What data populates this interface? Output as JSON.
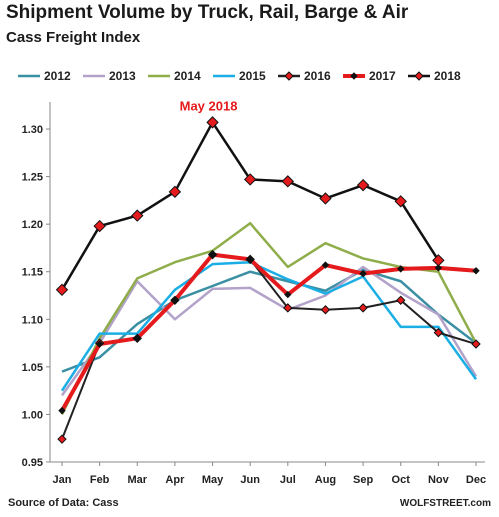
{
  "header": {
    "title": "Shipment Volume by Truck, Rail, Barge & Air",
    "subtitle": "Cass Freight Index"
  },
  "footer": {
    "source": "Source of Data: Cass",
    "brand": "WOLFSTREET.com"
  },
  "chart_data": {
    "type": "line",
    "title": "Shipment Volume by Truck, Rail, Barge & Air",
    "subtitle": "Cass Freight Index",
    "xlabel": "",
    "ylabel": "",
    "categories": [
      "Jan",
      "Feb",
      "Mar",
      "Apr",
      "May",
      "Jun",
      "Jul",
      "Aug",
      "Sep",
      "Oct",
      "Nov",
      "Dec"
    ],
    "ylim": [
      0.95,
      1.32
    ],
    "yticks": [
      0.95,
      1.0,
      1.05,
      1.1,
      1.15,
      1.2,
      1.25,
      1.3
    ],
    "ytick_labels": [
      "0.95",
      "1.00",
      "1.05",
      "1.10",
      "1.15",
      "1.20",
      "1.25",
      "1.30"
    ],
    "legend_position": "top",
    "grid": false,
    "annotation": {
      "text": "May 2018",
      "category": "May",
      "series": "2018"
    },
    "series": [
      {
        "name": "2012",
        "color": "#3a8fa3",
        "marker": "none",
        "values": [
          1.045,
          1.06,
          1.095,
          1.12,
          1.135,
          1.15,
          1.14,
          1.13,
          1.152,
          1.14,
          1.105,
          1.075
        ]
      },
      {
        "name": "2013",
        "color": "#b3a2c9",
        "marker": "none",
        "values": [
          1.02,
          1.075,
          1.14,
          1.1,
          1.132,
          1.133,
          1.11,
          1.125,
          1.155,
          1.128,
          1.105,
          1.04
        ]
      },
      {
        "name": "2014",
        "color": "#8fad4b",
        "marker": "none",
        "values": [
          1.0,
          1.08,
          1.143,
          1.16,
          1.172,
          1.201,
          1.155,
          1.18,
          1.164,
          1.155,
          1.15,
          1.075
        ]
      },
      {
        "name": "2015",
        "color": "#1aaee5",
        "marker": "none",
        "values": [
          1.025,
          1.085,
          1.085,
          1.131,
          1.158,
          1.16,
          1.142,
          1.127,
          1.145,
          1.092,
          1.092,
          1.037
        ]
      },
      {
        "name": "2016",
        "color": "#222222",
        "marker": "diamond-red",
        "lineWidth": 2,
        "values": [
          0.974,
          1.075,
          1.08,
          1.12,
          1.168,
          1.163,
          1.112,
          1.11,
          1.112,
          1.12,
          1.086,
          1.074
        ]
      },
      {
        "name": "2017",
        "color": "#e41a1c",
        "marker": "diamond-black",
        "lineWidth": 4,
        "values": [
          1.004,
          1.074,
          1.08,
          1.12,
          1.168,
          1.163,
          1.126,
          1.157,
          1.148,
          1.153,
          1.154,
          1.151
        ]
      },
      {
        "name": "2018",
        "color": "#111111",
        "marker": "diamond-red",
        "lineWidth": 2.5,
        "values": [
          1.131,
          1.198,
          1.209,
          1.234,
          1.307,
          1.247,
          1.245,
          1.227,
          1.241,
          1.224,
          1.162,
          null
        ]
      }
    ]
  }
}
